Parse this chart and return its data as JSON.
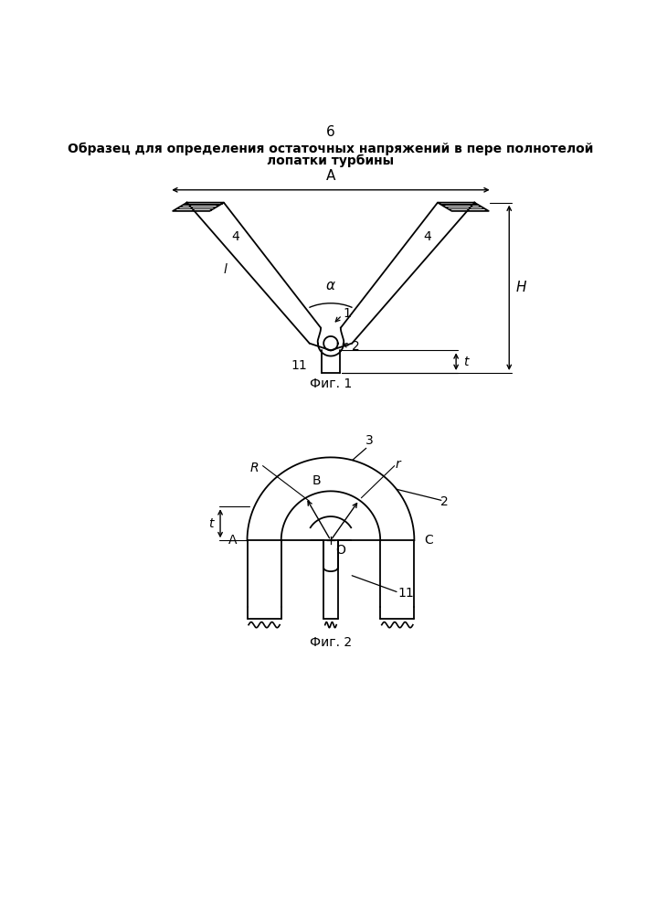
{
  "page_number": "6",
  "title_line1": "Образец для определения остаточных напряжений в пере полнотелой",
  "title_line2": "лопатки турбины",
  "fig1_caption": "Фиг. 1",
  "fig2_caption": "Фиг. 2",
  "bg_color": "#ffffff",
  "line_color": "#000000"
}
